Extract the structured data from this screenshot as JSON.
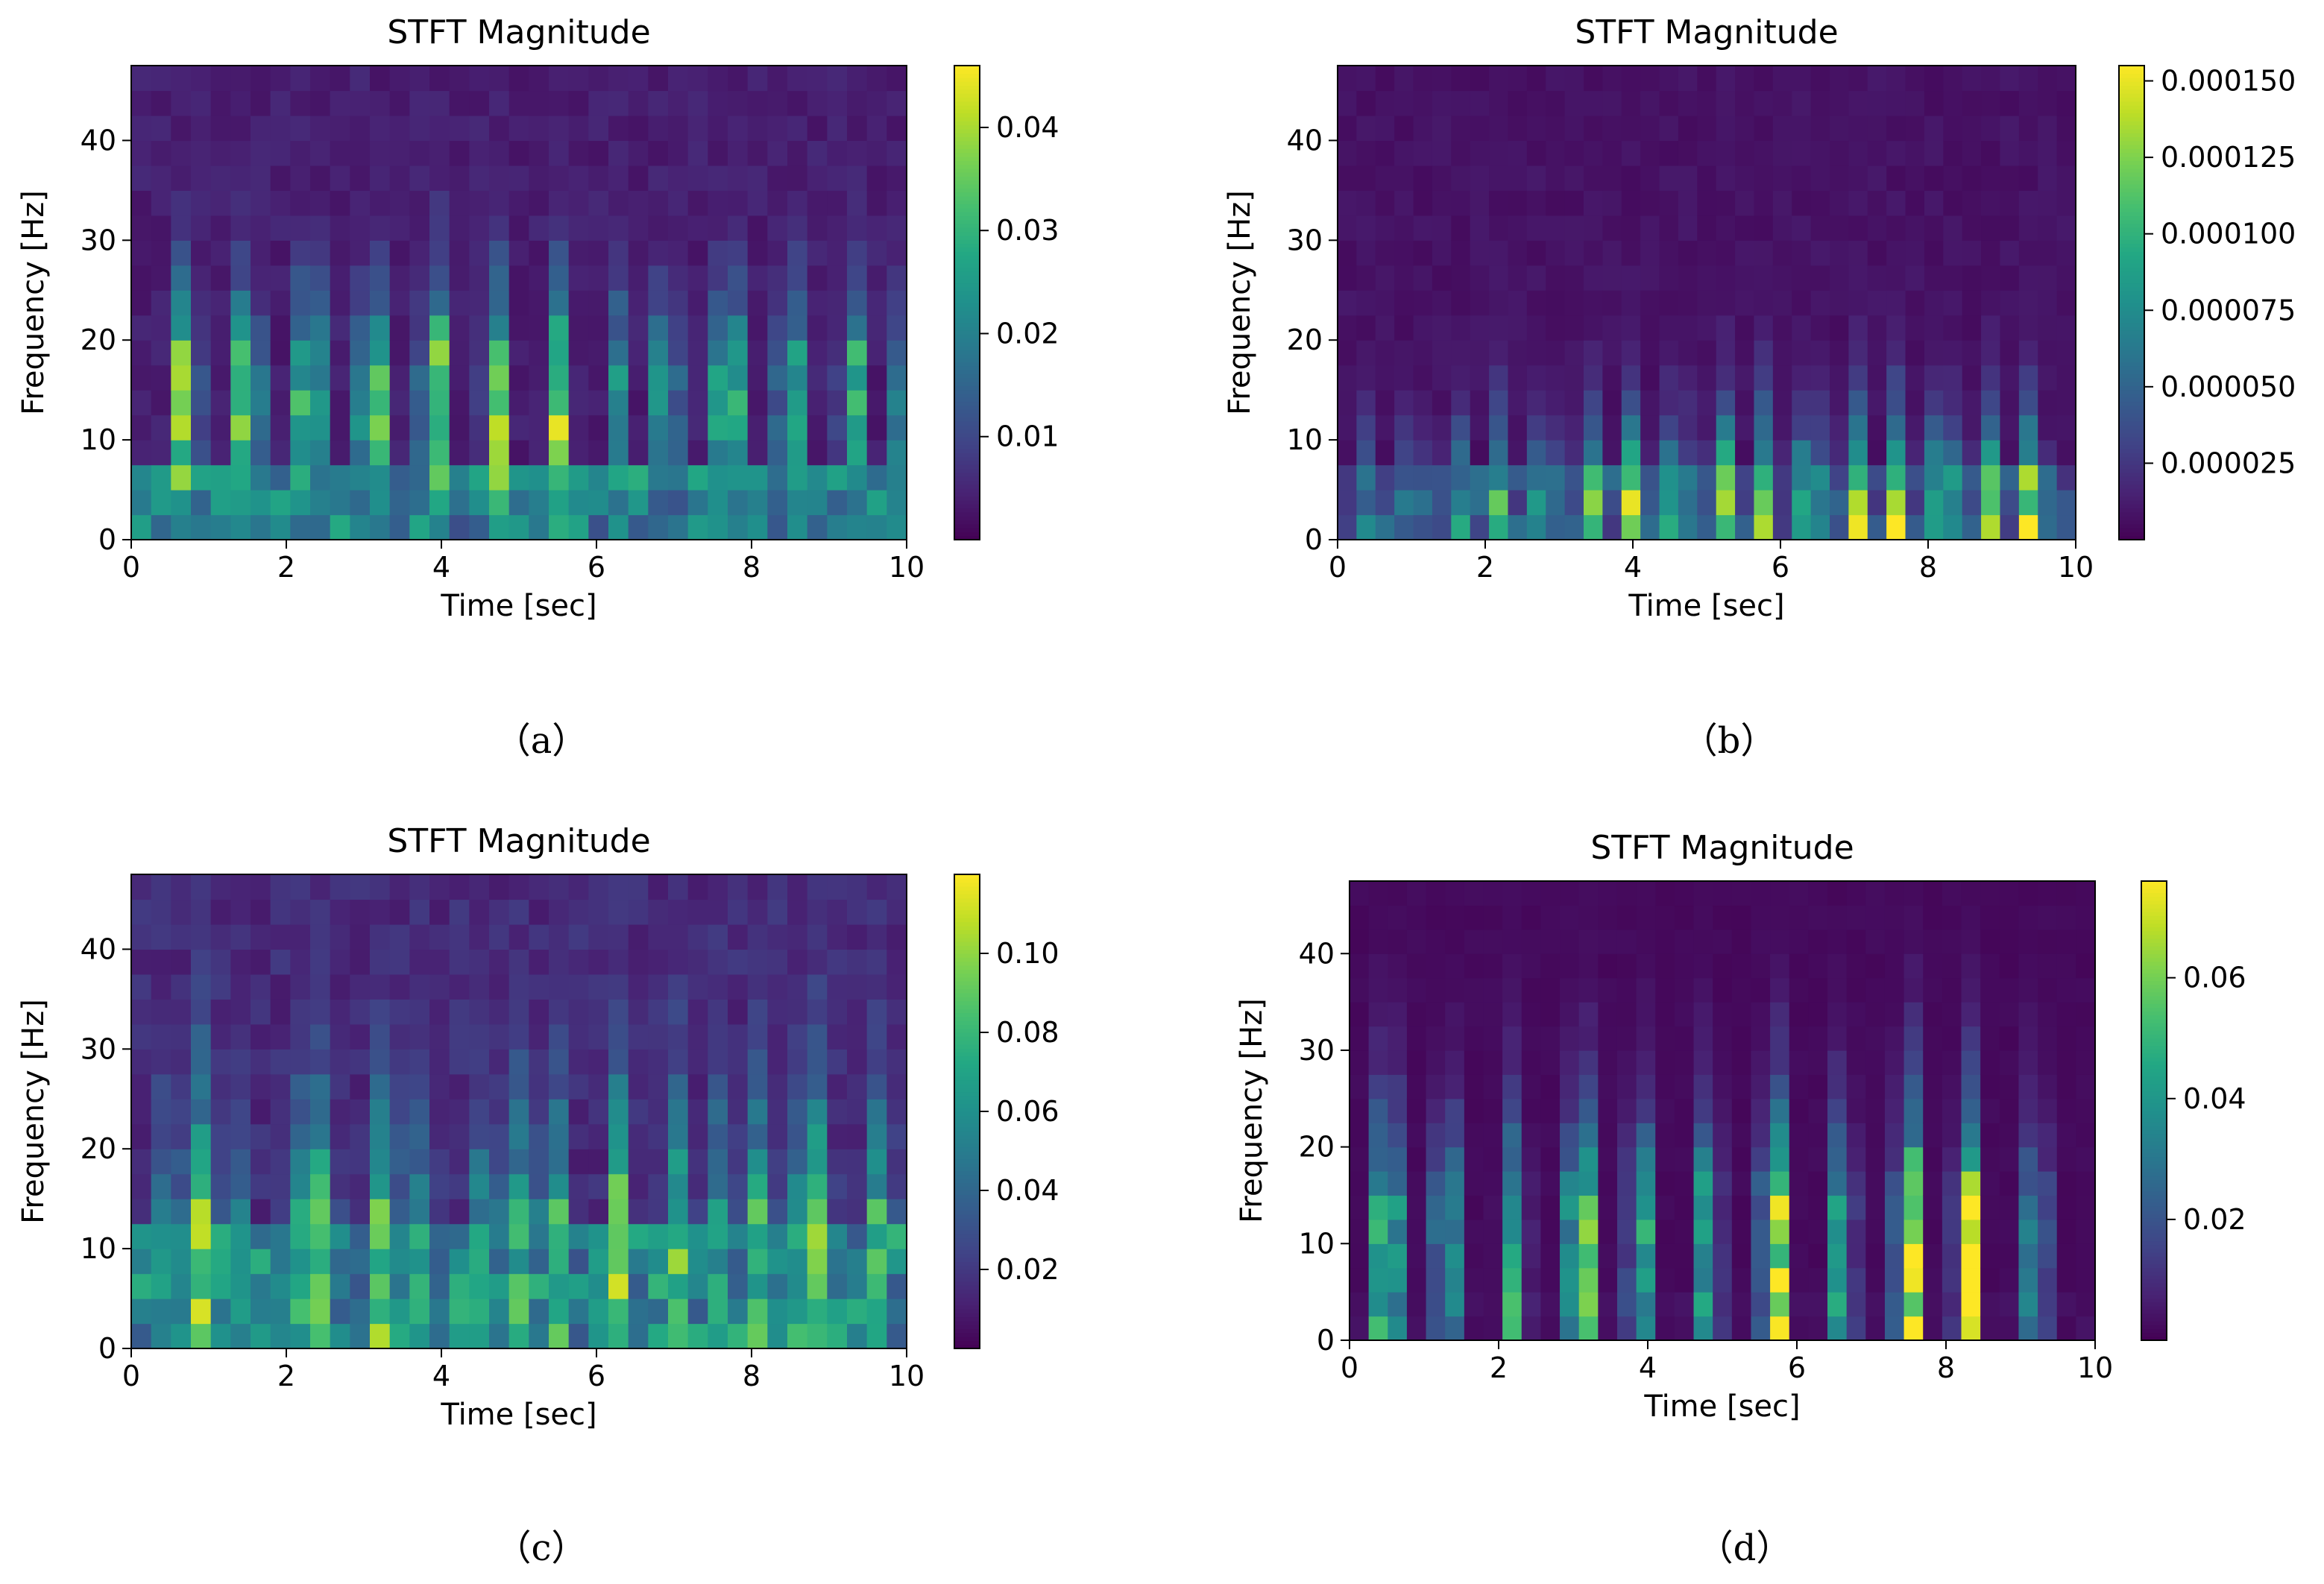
{
  "chart_data": [
    {
      "panel": "a",
      "caption": "（a）",
      "type": "heatmap",
      "title": "STFT Magnitude",
      "xlabel": "Time [sec]",
      "ylabel": "Frequency [Hz]",
      "xlim": [
        0,
        10
      ],
      "ylim": [
        0,
        47.5
      ],
      "xticks": [
        0,
        2,
        4,
        6,
        8,
        10
      ],
      "yticks": [
        0,
        10,
        20,
        30,
        40
      ],
      "colormap": "viridis",
      "colorbar": {
        "min": 0.0,
        "max": 0.046,
        "ticks": [
          0.01,
          0.02,
          0.03,
          0.04
        ],
        "tick_labels": [
          "0.01",
          "0.02",
          "0.03",
          "0.04"
        ]
      },
      "time_bins": 39,
      "freq_bins": 19,
      "pulse_times": [
        0.7,
        1.5,
        2.3,
        3.1,
        3.9,
        4.7,
        5.5,
        6.3,
        6.9,
        7.7,
        8.5,
        9.3,
        9.9
      ],
      "pulse_peaks": [
        0.042,
        0.044,
        0.046,
        0.044,
        0.046,
        0.04,
        0.036,
        0.024,
        0.03,
        0.044,
        0.036,
        0.034,
        0.02
      ],
      "pulse_peak_band_hz": [
        7.5,
        17.5
      ],
      "pulse_decay_hz": 9,
      "low_band_hz": [
        0,
        7.5
      ],
      "low_band_level": 0.02,
      "background_level": 0.004
    },
    {
      "panel": "b",
      "caption": "（b）",
      "type": "heatmap",
      "title": "STFT Magnitude",
      "xlabel": "Time [sec]",
      "ylabel": "Frequency [Hz]",
      "xlim": [
        0,
        10
      ],
      "ylim": [
        0,
        47.5
      ],
      "xticks": [
        0,
        2,
        4,
        6,
        8,
        10
      ],
      "yticks": [
        0,
        10,
        20,
        30,
        40
      ],
      "colormap": "viridis",
      "colorbar": {
        "min": 0.0,
        "max": 0.000155,
        "ticks": [
          2.5e-05,
          5e-05,
          7.5e-05,
          0.0001,
          0.000125,
          0.00015
        ],
        "tick_labels": [
          "0.000025",
          "0.000050",
          "0.000075",
          "0.000100",
          "0.000125",
          "0.000150"
        ]
      },
      "time_bins": 39,
      "freq_bins": 19,
      "pulse_times": [
        0.4,
        1.0,
        1.6,
        2.2,
        2.8,
        3.4,
        4.0,
        4.6,
        5.2,
        5.8,
        6.4,
        7.0,
        7.6,
        8.2,
        8.8,
        9.4
      ],
      "pulse_peaks": [
        6e-05,
        8e-05,
        9e-05,
        0.0001,
        0.00011,
        0.00012,
        0.00013,
        0.00013,
        0.00015,
        0.00014,
        0.00015,
        0.000155,
        0.00015,
        0.000155,
        0.00015,
        0.000145
      ],
      "pulse_peak_band_hz": [
        0,
        5
      ],
      "pulse_decay_hz": 7,
      "low_band_hz": [
        0,
        7.5
      ],
      "low_band_level": 4e-05,
      "background_level": 8e-06
    },
    {
      "panel": "c",
      "caption": "（c）",
      "type": "heatmap",
      "title": "STFT Magnitude",
      "xlabel": "Time [sec]",
      "ylabel": "Frequency [Hz]",
      "xlim": [
        0,
        10
      ],
      "ylim": [
        0,
        47.5
      ],
      "xticks": [
        0,
        2,
        4,
        6,
        8,
        10
      ],
      "yticks": [
        0,
        10,
        20,
        30,
        40
      ],
      "colormap": "viridis",
      "colorbar": {
        "min": 0.0,
        "max": 0.12,
        "ticks": [
          0.02,
          0.04,
          0.06,
          0.08,
          0.1
        ],
        "tick_labels": [
          "0.02",
          "0.04",
          "0.06",
          "0.08",
          "0.10"
        ]
      },
      "time_bins": 39,
      "freq_bins": 19,
      "pulse_times": [
        0.5,
        0.9,
        1.3,
        2.1,
        2.5,
        3.3,
        3.8,
        4.6,
        5.1,
        5.5,
        6.3,
        7.1,
        7.5,
        8.0,
        8.5,
        8.9,
        9.7
      ],
      "pulse_peaks": [
        0.09,
        0.1,
        0.08,
        0.09,
        0.1,
        0.12,
        0.08,
        0.09,
        0.11,
        0.08,
        0.1,
        0.09,
        0.08,
        0.1,
        0.09,
        0.11,
        0.1
      ],
      "pulse_peak_band_hz": [
        0,
        12.5
      ],
      "pulse_decay_hz": 16,
      "low_band_hz": [
        0,
        12.5
      ],
      "low_band_level": 0.055,
      "background_level": 0.015
    },
    {
      "panel": "d",
      "caption": "（d）",
      "type": "heatmap",
      "title": "STFT Magnitude",
      "xlabel": "Time [sec]",
      "ylabel": "Frequency [Hz]",
      "xlim": [
        0,
        10
      ],
      "ylim": [
        0,
        47.5
      ],
      "xticks": [
        0,
        2,
        4,
        6,
        8,
        10
      ],
      "yticks": [
        0,
        10,
        20,
        30,
        40
      ],
      "colormap": "viridis",
      "colorbar": {
        "min": 0.0,
        "max": 0.076,
        "ticks": [
          0.02,
          0.04,
          0.06
        ],
        "tick_labels": [
          "0.02",
          "0.04",
          "0.06"
        ]
      },
      "time_bins": 39,
      "freq_bins": 19,
      "pulse_times": [
        0.5,
        1.3,
        2.2,
        3.1,
        3.9,
        4.8,
        5.7,
        6.6,
        7.5,
        8.3,
        9.2
      ],
      "pulse_peaks": [
        0.076,
        0.05,
        0.045,
        0.076,
        0.05,
        0.045,
        0.076,
        0.045,
        0.076,
        0.07,
        0.04
      ],
      "pulse_peak_band_hz": [
        0,
        15
      ],
      "pulse_decay_hz": 9,
      "low_band_hz": [
        0,
        5
      ],
      "low_band_level": 0.003,
      "background_level": 0.002
    }
  ]
}
